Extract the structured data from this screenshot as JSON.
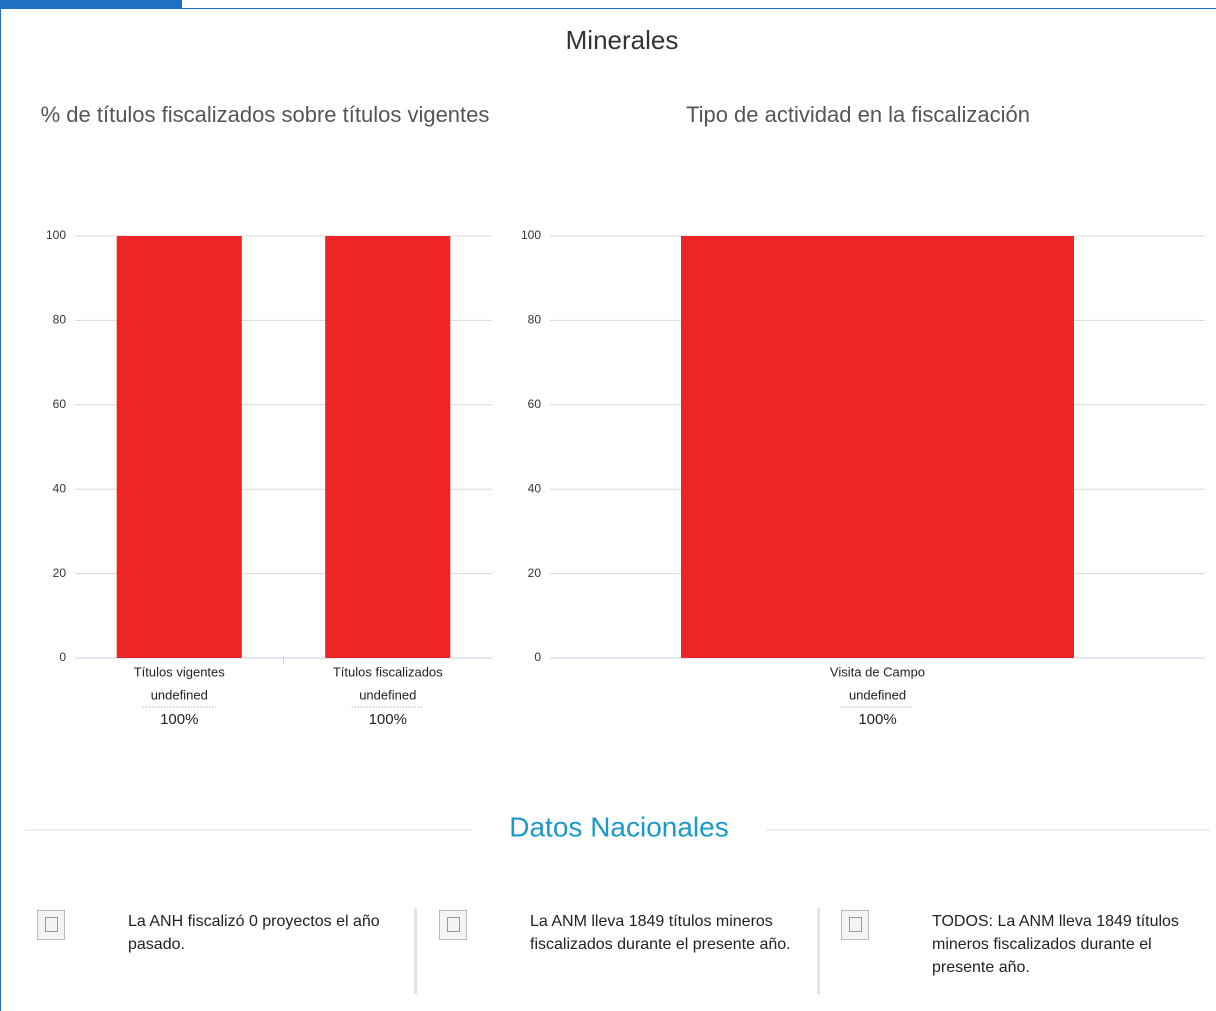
{
  "page_title": "Minerales",
  "chart_data": [
    {
      "type": "bar",
      "title": "% de títulos fiscalizados sobre títulos vigentes",
      "categories": [
        "Títulos vigentes",
        "Títulos fiscalizados"
      ],
      "sublabels": [
        "undefined",
        "undefined"
      ],
      "values": [
        100,
        100
      ],
      "value_labels": [
        "100%",
        "100%"
      ],
      "color": "#ee2524",
      "ylim": [
        0,
        100
      ],
      "yticks": [
        0,
        20,
        40,
        60,
        80,
        100
      ],
      "grid": true
    },
    {
      "type": "bar",
      "title": "Tipo de actividad en la fiscalización",
      "categories": [
        "Visita de Campo"
      ],
      "sublabels": [
        "undefined"
      ],
      "values": [
        100
      ],
      "value_labels": [
        "100%"
      ],
      "color": "#ee2524",
      "ylim": [
        0,
        100
      ],
      "yticks": [
        0,
        20,
        40,
        60,
        80,
        100
      ],
      "grid": true
    }
  ],
  "section_title": "Datos Nacionales",
  "cards": [
    {
      "text": "La ANH fiscalizó 0 proyectos el año pasado."
    },
    {
      "text": "La ANM lleva 1849 títulos mineros fiscalizados durante el presente año."
    },
    {
      "text": "TODOS: La ANM lleva 1849 títulos mineros fiscalizados durante el presente año."
    }
  ]
}
